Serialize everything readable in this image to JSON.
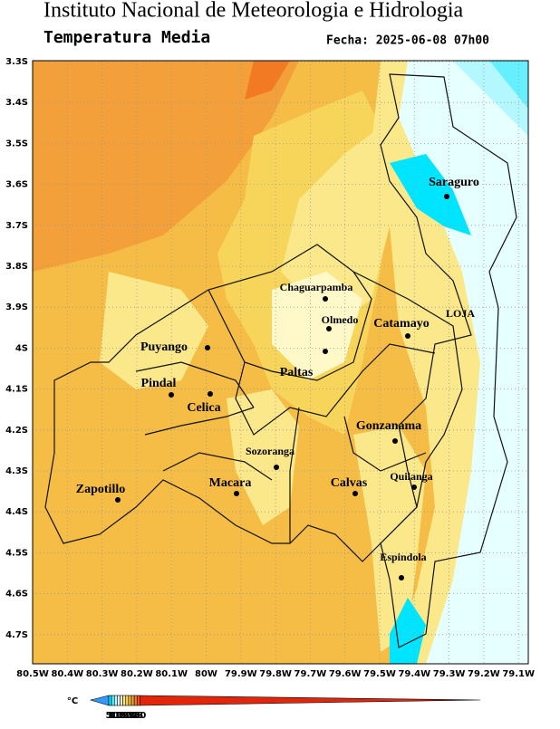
{
  "header": {
    "title": "Instituto Nacional de Meteorologia e Hidrologia",
    "subtitle": "Temperatura Media",
    "date": "Fecha: 2025-06-08 07h00"
  },
  "map": {
    "y_labels": [
      "3.3S",
      "3.4S",
      "3.5S",
      "3.6S",
      "3.7S",
      "3.8S",
      "3.9S",
      "4S",
      "4.1S",
      "4.2S",
      "4.3S",
      "4.4S",
      "4.5S",
      "4.6S",
      "4.7S"
    ],
    "x_labels": [
      "80.5W",
      "80.4W",
      "80.3W",
      "80.2W",
      "80.1W",
      "80W",
      "79.9W",
      "79.8W",
      "79.7W",
      "79.6W",
      "79.5W",
      "79.4W",
      "79.3W",
      "79.2W",
      "79.1W"
    ],
    "places": [
      "Saraguro",
      "LOJA",
      "Chaguarpamba",
      "Olmedo",
      "Catamayo",
      "Puyango",
      "Paltas",
      "Pindal",
      "Celica",
      "Gonzanama",
      "Sozoranga",
      "Calvas",
      "Quilanga",
      "Zapotillo",
      "Macara",
      "Espindola"
    ]
  },
  "legend": {
    "unit": "°C",
    "labels": [
      "5",
      "8",
      "11",
      "13",
      "15",
      "18",
      "20",
      "22",
      "24",
      "26",
      "28",
      "30"
    ],
    "colors": [
      "#3399ff",
      "#00e5ff",
      "#66f0ff",
      "#b3f7ff",
      "#e6ffff",
      "#fff8c8",
      "#fbe88a",
      "#f7d55a",
      "#f5bd45",
      "#f4a03a",
      "#f27a22",
      "#ea5510",
      "#e2260c"
    ]
  }
}
